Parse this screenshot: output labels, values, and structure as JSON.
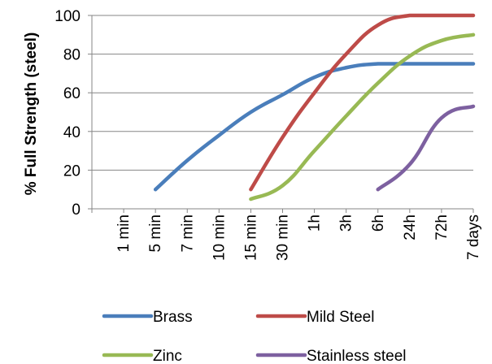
{
  "chart_data": {
    "type": "line",
    "title": "",
    "xlabel": "",
    "ylabel": "% Full Strength (steel)",
    "ylim": [
      0,
      100
    ],
    "yticks": [
      0,
      20,
      40,
      60,
      80,
      100
    ],
    "categories": [
      "1 min",
      "5 min",
      "7 min",
      "10 min",
      "15 min",
      "30 min",
      "1h",
      "3h",
      "6h",
      "24h",
      "72h",
      "7 days"
    ],
    "grid": "horizontal",
    "legend_position": "bottom",
    "series": [
      {
        "name": "Brass",
        "color": "#4a7ebb",
        "values": [
          null,
          10,
          25,
          38,
          50,
          59,
          68,
          73,
          75,
          75,
          75,
          75
        ]
      },
      {
        "name": "Mild Steel",
        "color": "#be4b48",
        "values": [
          null,
          null,
          null,
          null,
          10,
          37,
          60,
          80,
          95,
          100,
          100,
          100
        ]
      },
      {
        "name": "Zinc",
        "color": "#98b954",
        "values": [
          null,
          null,
          null,
          null,
          5,
          12,
          30,
          48,
          65,
          79,
          87,
          90
        ]
      },
      {
        "name": "Stainless steel",
        "color": "#7d60a0",
        "values": [
          null,
          null,
          null,
          null,
          null,
          null,
          null,
          null,
          10,
          23,
          47,
          53
        ]
      }
    ]
  }
}
